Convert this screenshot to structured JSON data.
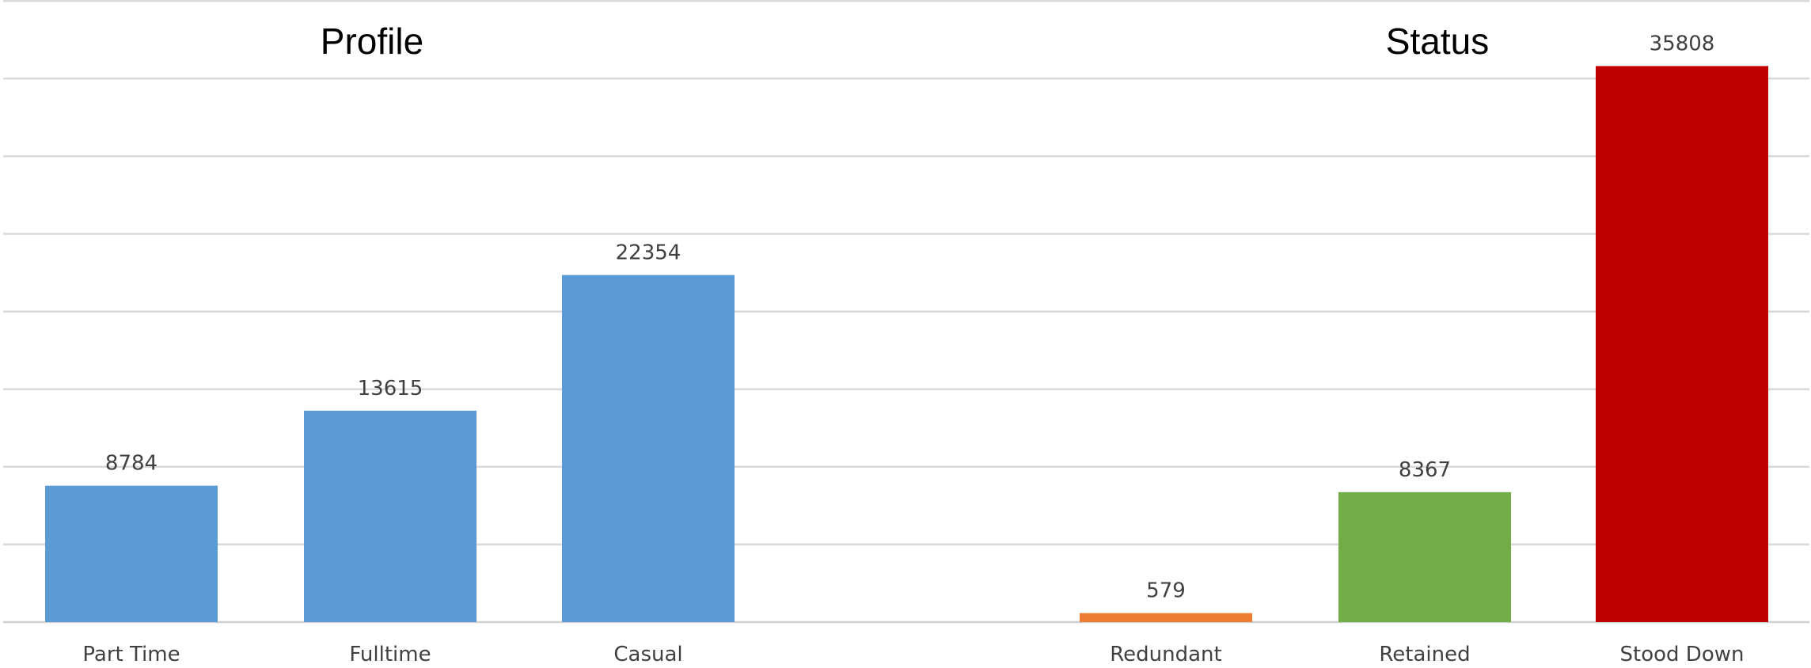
{
  "chart_data": {
    "type": "bar",
    "title": "",
    "xlabel": "",
    "ylabel": "",
    "ylim": [
      0,
      40000
    ],
    "y_gridline_step": 5000,
    "grid": true,
    "legend": "none",
    "panels": [
      {
        "title": "Profile",
        "categories": [
          "Part Time",
          "Fulltime",
          "Casual"
        ],
        "values": [
          8784,
          13615,
          22354
        ],
        "colors": [
          "#5b9bd5",
          "#5b9bd5",
          "#5b9bd5"
        ]
      },
      {
        "title": "Status",
        "categories": [
          "Redundant",
          "Retained",
          "Stood Down"
        ],
        "values": [
          579,
          8367,
          35808
        ],
        "colors": [
          "#ed7d31",
          "#70ad47",
          "#c00000"
        ]
      }
    ]
  }
}
